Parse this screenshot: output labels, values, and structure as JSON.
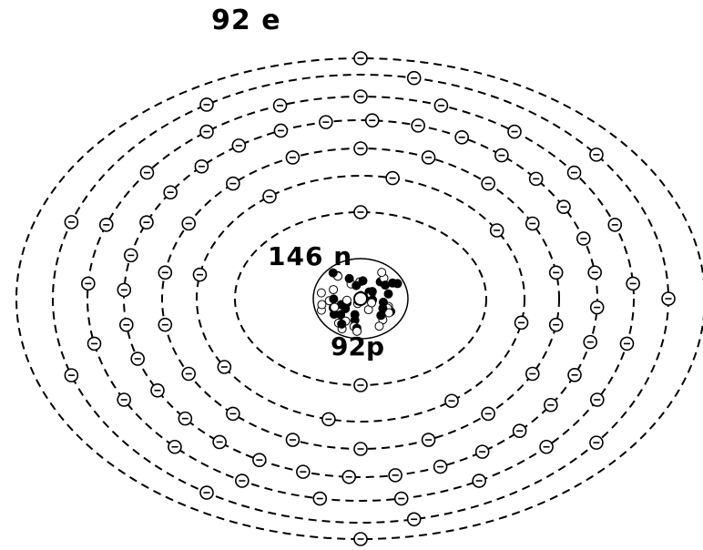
{
  "labels": {
    "electrons": "92 e",
    "neutrons": "146 n",
    "protons": "92p"
  },
  "colors": {
    "ink": "#000000",
    "background": "#ffffff"
  },
  "icons": {
    "electron": "electron-icon",
    "nucleus": "nucleus-icon"
  }
}
